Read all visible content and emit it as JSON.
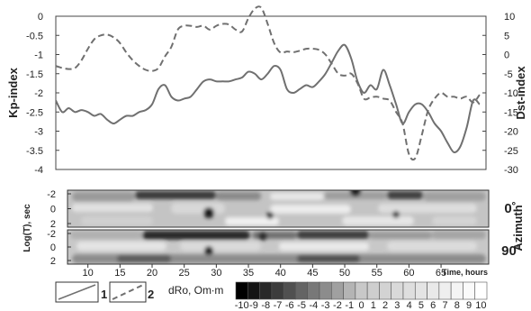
{
  "chart_data": [
    {
      "type": "line",
      "left_axis_label": "Kp-index",
      "right_axis_label": "Dst-index",
      "left_ylim": [
        -4,
        0
      ],
      "left_ticks": [
        "0",
        "-0.5",
        "-1",
        "-1.5",
        "-2",
        "-2.5",
        "-3",
        "-3.5",
        "-4"
      ],
      "right_ylim": [
        -30,
        10
      ],
      "right_ticks": [
        "10",
        "5",
        "0",
        "-5",
        "-10",
        "-15",
        "-20",
        "-25",
        "-30"
      ],
      "xlim": [
        5,
        72
      ],
      "x_ticks": [
        "10",
        "15",
        "20",
        "25",
        "30",
        "35",
        "40",
        "45",
        "50",
        "55",
        "60",
        "65"
      ],
      "x_label": "Time, hours",
      "grid": false,
      "series": [
        {
          "name": "1",
          "axis": "left",
          "style": "solid",
          "color": "#707070",
          "x": [
            5,
            6,
            7,
            8,
            9,
            10,
            11,
            12,
            13,
            14,
            15,
            16,
            17,
            18,
            19,
            20,
            21,
            22,
            23,
            24,
            25,
            26,
            27,
            28,
            29,
            30,
            31,
            32,
            33,
            34,
            35,
            36,
            37,
            38,
            39,
            40,
            41,
            42,
            43,
            44,
            45,
            46,
            47,
            48,
            49,
            50,
            51,
            52,
            53,
            54,
            55,
            56,
            57,
            58,
            59,
            60,
            61,
            62,
            63,
            64,
            65,
            66,
            67,
            68,
            69,
            70,
            71
          ],
          "y": [
            -2.2,
            -2.5,
            -2.4,
            -2.5,
            -2.45,
            -2.5,
            -2.6,
            -2.55,
            -2.7,
            -2.8,
            -2.7,
            -2.6,
            -2.6,
            -2.5,
            -2.45,
            -2.3,
            -1.9,
            -1.8,
            -2.1,
            -2.2,
            -2.15,
            -2.1,
            -1.9,
            -1.7,
            -1.65,
            -1.7,
            -1.7,
            -1.7,
            -1.65,
            -1.6,
            -1.45,
            -1.5,
            -1.65,
            -1.5,
            -1.3,
            -1.4,
            -1.9,
            -2.0,
            -1.9,
            -1.8,
            -1.85,
            -1.7,
            -1.5,
            -1.2,
            -0.9,
            -0.75,
            -1.1,
            -1.7,
            -2.0,
            -1.8,
            -1.9,
            -1.4,
            -1.8,
            -2.3,
            -2.8,
            -2.5,
            -2.3,
            -2.3,
            -2.5,
            -2.8,
            -3.0,
            -3.3,
            -3.55,
            -3.4,
            -2.9,
            -2.2,
            -2.3
          ]
        },
        {
          "name": "2",
          "axis": "right",
          "style": "dashed",
          "color": "#707070",
          "x": [
            5,
            6,
            7,
            8,
            9,
            10,
            11,
            12,
            13,
            14,
            15,
            16,
            17,
            18,
            19,
            20,
            21,
            22,
            23,
            24,
            25,
            26,
            27,
            28,
            29,
            30,
            31,
            32,
            33,
            34,
            35,
            36,
            37,
            38,
            39,
            40,
            41,
            42,
            43,
            44,
            45,
            46,
            47,
            48,
            49,
            50,
            51,
            52,
            53,
            54,
            55,
            56,
            57,
            58,
            59,
            60,
            61,
            62,
            63,
            64,
            65,
            66,
            67,
            68,
            69,
            70,
            71
          ],
          "y": [
            -3,
            -3.5,
            -3.8,
            -3.5,
            -1.5,
            1.5,
            4,
            5,
            5.2,
            4.5,
            3,
            0.5,
            -1.5,
            -3,
            -4,
            -4.3,
            -3.5,
            -0.5,
            2,
            6.5,
            7.5,
            7.5,
            7.2,
            7.5,
            6.5,
            7.5,
            8,
            7.8,
            6.5,
            6,
            9.5,
            12,
            12.2,
            8,
            3,
            0.5,
            0.8,
            0.6,
            1,
            1.5,
            1.5,
            1.2,
            0,
            -2.5,
            -5,
            -5.5,
            -5,
            -7.5,
            -11.5,
            -11.2,
            -11,
            -11.5,
            -12,
            -15,
            -18,
            -26,
            -27,
            -21,
            -14.5,
            -11.5,
            -10,
            -11,
            -11,
            -11.5,
            -11,
            -12.5,
            -10.5
          ]
        }
      ],
      "legend": "bottom-left"
    },
    {
      "type": "heatmap",
      "panels": [
        {
          "label": "0˚"
        },
        {
          "label": "90˚"
        }
      ],
      "group_label": "Azimuth",
      "y_label": "Log(T), sec",
      "y_ticks": [
        "-2",
        "0",
        "2"
      ],
      "x_label": "Time, hours",
      "colorbar": {
        "label": "dRo, Om∙m",
        "ticks": [
          "-10",
          "-9",
          "-8",
          "-7",
          "-6",
          "-5",
          "-4",
          "-3",
          "-2",
          "-1",
          "0",
          "1",
          "2",
          "3",
          "4",
          "5",
          "6",
          "7",
          "8",
          "9",
          "10"
        ],
        "range": [
          -10,
          10
        ]
      }
    }
  ]
}
